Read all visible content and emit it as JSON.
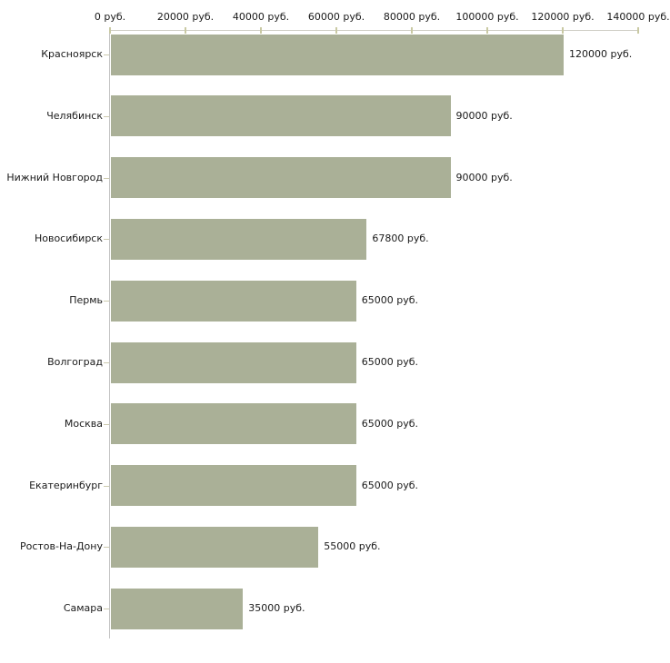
{
  "chart_data": {
    "type": "bar",
    "orientation": "horizontal",
    "title": "",
    "xlabel": "",
    "ylabel": "",
    "unit": "руб.",
    "categories": [
      "Красноярск",
      "Челябинск",
      "Нижний Новгород",
      "Новосибирск",
      "Пермь",
      "Волгоград",
      "Москва",
      "Екатеринбург",
      "Ростов-На-Дону",
      "Самара"
    ],
    "values": [
      120000,
      90000,
      90000,
      67800,
      65000,
      65000,
      65000,
      65000,
      55000,
      35000
    ],
    "value_labels": [
      "120000 руб.",
      "90000 руб.",
      "90000 руб.",
      "67800 руб.",
      "65000 руб.",
      "65000 руб.",
      "65000 руб.",
      "65000 руб.",
      "55000 руб.",
      "35000 руб."
    ],
    "x_axis": {
      "position": "top",
      "min": 0,
      "max": 140000,
      "tick_step": 20000,
      "tick_labels": [
        "0 руб.",
        "20000 руб.",
        "40000 руб.",
        "60000 руб.",
        "80000 руб.",
        "100000 руб.",
        "120000 руб.",
        "140000 руб."
      ]
    },
    "grid": false,
    "legend": false,
    "colors": {
      "bar": "#AAB097",
      "x_axis_line": "#CFCEC5",
      "x_tick": "#C9C9A3",
      "y_axis_line": "#C4C4C4",
      "category_tick": "#CCCAAE",
      "text": "#1A1A1A",
      "background": "#FFFFFF"
    }
  }
}
